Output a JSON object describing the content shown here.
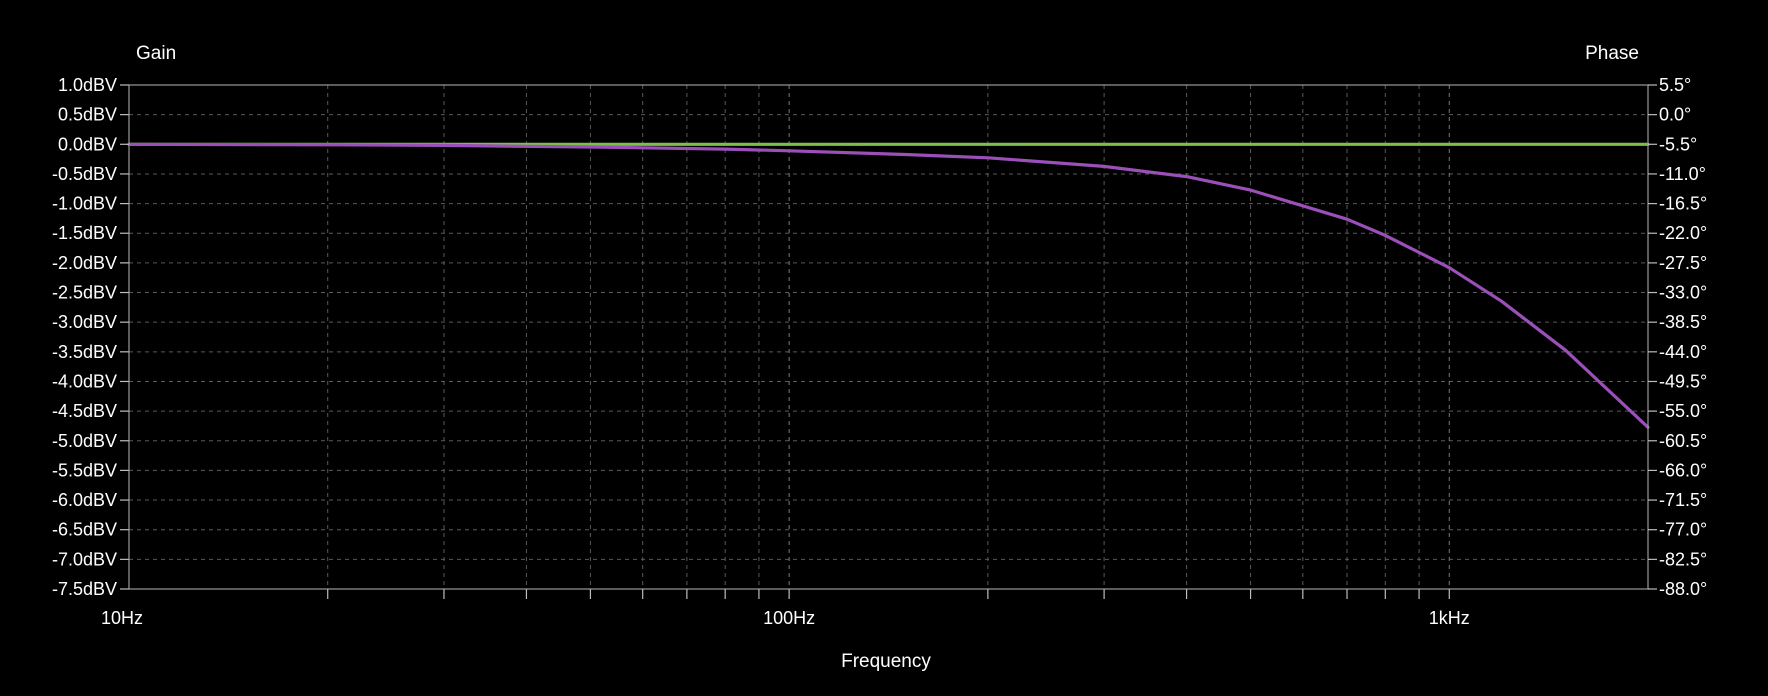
{
  "chart_data": {
    "type": "line",
    "xlabel": "Frequency",
    "ylabel_left": "Gain",
    "ylabel_right": "Phase",
    "x_scale": "log",
    "xlim": [
      10,
      2000
    ],
    "x_tick_labels": [
      {
        "value": 10,
        "label": "10Hz"
      },
      {
        "value": 100,
        "label": "100Hz"
      },
      {
        "value": 1000,
        "label": "1kHz"
      }
    ],
    "y_left": {
      "lim": [
        -7.5,
        1.0
      ],
      "ticks": [
        1.0,
        0.5,
        0.0,
        -0.5,
        -1.0,
        -1.5,
        -2.0,
        -2.5,
        -3.0,
        -3.5,
        -4.0,
        -4.5,
        -5.0,
        -5.5,
        -6.0,
        -6.5,
        -7.0,
        -7.5
      ],
      "tick_labels": [
        "1.0dBV",
        "0.5dBV",
        "0.0dBV",
        "-0.5dBV",
        "-1.0dBV",
        "-1.5dBV",
        "-2.0dBV",
        "-2.5dBV",
        "-3.0dBV",
        "-3.5dBV",
        "-4.0dBV",
        "-4.5dBV",
        "-5.0dBV",
        "-5.5dBV",
        "-6.0dBV",
        "-6.5dBV",
        "-7.0dBV",
        "-7.5dBV"
      ]
    },
    "y_right": {
      "lim": [
        -88.0,
        5.5
      ],
      "tick_labels": [
        "5.5°",
        "0.0°",
        "-5.5°",
        "-11.0°",
        "-16.5°",
        "-22.0°",
        "-27.5°",
        "-33.0°",
        "-38.5°",
        "-44.0°",
        "-49.5°",
        "-55.0°",
        "-60.5°",
        "-66.0°",
        "-71.5°",
        "-77.0°",
        "-82.5°",
        "-88.0°"
      ]
    },
    "grid": true,
    "series": [
      {
        "axis": "left",
        "color": "#7cc04a",
        "x": [
          10,
          2000
        ],
        "y": [
          0.0,
          0.0
        ]
      },
      {
        "axis": "right",
        "color": "#9b4fb8",
        "x": [
          10,
          20,
          30,
          50,
          80,
          100,
          150,
          200,
          300,
          400,
          500,
          700,
          800,
          1000,
          1200,
          1500,
          2000
        ],
        "y": [
          -5.5,
          -5.6,
          -5.7,
          -6.0,
          -6.4,
          -6.7,
          -7.4,
          -8.0,
          -9.6,
          -11.5,
          -14.0,
          -19.4,
          -22.4,
          -28.4,
          -34.6,
          -43.7,
          -58.0
        ]
      }
    ]
  }
}
